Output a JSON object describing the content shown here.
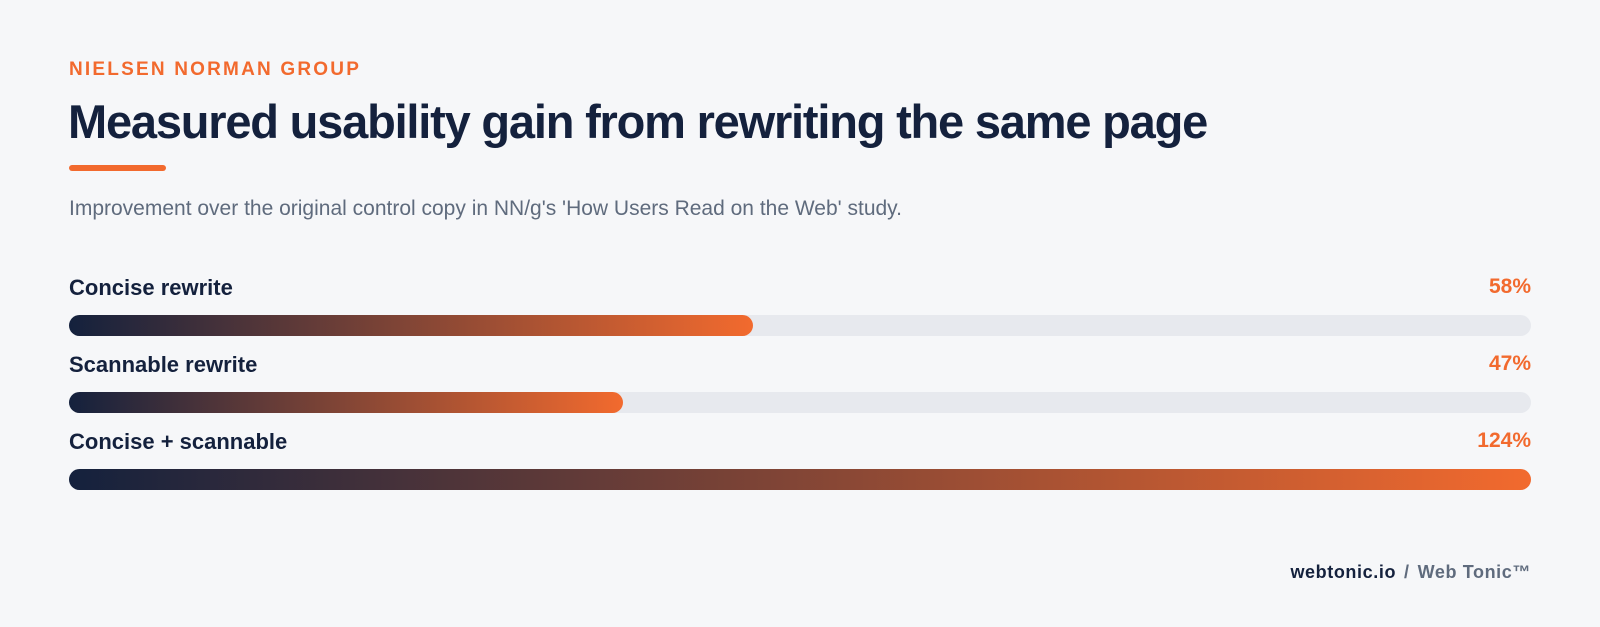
{
  "header": {
    "eyebrow": "NIELSEN NORMAN GROUP",
    "title": "Measured usability gain from rewriting the same page",
    "subtitle": "Improvement over the original control copy in NN/g's 'How Users Read on the Web' study."
  },
  "chart_data": {
    "type": "bar",
    "orientation": "horizontal",
    "categories": [
      "Concise rewrite",
      "Scannable rewrite",
      "Concise + scannable"
    ],
    "values": [
      58,
      47,
      124
    ],
    "value_labels": [
      "58%",
      "47%",
      "124%"
    ],
    "xlim": [
      0,
      124
    ],
    "grid": false,
    "legend": "none",
    "colors": {
      "bar_start": "#14213d",
      "bar_end": "#f26a2e",
      "track": "#e7e9ee",
      "value_text": "#f26a2e"
    }
  },
  "footer": {
    "domain": "webtonic.io",
    "separator": "/",
    "brand": "Web Tonic™"
  }
}
